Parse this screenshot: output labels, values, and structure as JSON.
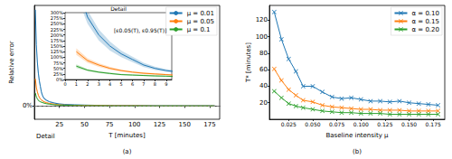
{
  "chart_data": [
    {
      "type": "line",
      "caption": "(a)",
      "x_label": "T [minutes]",
      "y_label": "Relative error",
      "annotations": [
        "Detail"
      ],
      "x": [
        1,
        2,
        3,
        4,
        5,
        6,
        7,
        8,
        9,
        10,
        12,
        15,
        20,
        25,
        30,
        40,
        50,
        60,
        80,
        100,
        120,
        140,
        160,
        180
      ],
      "series": [
        {
          "name": "μ = 0.01",
          "color": "#1f77b4",
          "values": [
            440,
            280,
            200,
            150,
            115,
            90,
            65,
            50,
            40,
            34,
            27,
            20,
            14,
            10,
            8,
            6,
            5,
            4,
            3,
            3,
            2,
            2,
            2,
            2
          ],
          "lower": [
            380,
            250,
            175,
            130,
            100,
            78,
            56,
            43,
            34,
            29,
            23,
            17,
            11,
            8,
            6,
            5,
            4,
            3,
            2,
            2,
            1,
            1,
            1,
            1
          ],
          "upper": [
            500,
            310,
            225,
            170,
            130,
            102,
            75,
            58,
            47,
            40,
            32,
            24,
            17,
            12,
            10,
            8,
            6,
            5,
            4,
            4,
            3,
            3,
            3,
            3
          ]
        },
        {
          "name": "μ = 0.05",
          "color": "#ff7f0e",
          "values": [
            125,
            85,
            65,
            50,
            40,
            33,
            28,
            25,
            22,
            19,
            16,
            12,
            9,
            6,
            5,
            4,
            3,
            3,
            2,
            2,
            1,
            1,
            1,
            1
          ],
          "lower": [
            110,
            75,
            57,
            44,
            35,
            29,
            24,
            21,
            19,
            16,
            13,
            10,
            7,
            5,
            4,
            3,
            2,
            2,
            1,
            1,
            1,
            1,
            1,
            1
          ],
          "upper": [
            140,
            95,
            73,
            57,
            45,
            38,
            32,
            28,
            25,
            22,
            19,
            14,
            11,
            8,
            6,
            5,
            4,
            4,
            3,
            3,
            2,
            2,
            2,
            2
          ]
        },
        {
          "name": "μ = 0.1",
          "color": "#2ca02c",
          "values": [
            60,
            42,
            33,
            27,
            22,
            20,
            18,
            16,
            15,
            13,
            11,
            9,
            6,
            5,
            4,
            3,
            2,
            2,
            1,
            1,
            1,
            1,
            1,
            1
          ],
          "lower": [
            52,
            37,
            29,
            23,
            19,
            17,
            15,
            14,
            13,
            11,
            9,
            7,
            5,
            4,
            3,
            2,
            2,
            1,
            1,
            1,
            0,
            0,
            0,
            0
          ],
          "upper": [
            68,
            47,
            37,
            31,
            25,
            23,
            21,
            19,
            17,
            15,
            13,
            11,
            8,
            6,
            5,
            4,
            3,
            3,
            2,
            2,
            2,
            2,
            2,
            2
          ]
        }
      ],
      "xlim": [
        0,
        185
      ],
      "xticks": [
        25,
        50,
        75,
        100,
        125,
        150,
        175
      ],
      "ylim": [
        -60,
        460
      ],
      "yticks": [
        {
          "value": 0,
          "label": "0%"
        }
      ],
      "grid": true,
      "legend": "upper right",
      "inset": {
        "title": "Detail",
        "annotation": "[ε0.05(T), ε0.95(T)]",
        "xlim": [
          0,
          9.5
        ],
        "xticks": [
          0,
          1,
          2,
          3,
          4,
          5,
          6,
          7,
          8,
          9
        ],
        "ylim": [
          0,
          300
        ],
        "yticks": [
          {
            "value": 0,
            "label": "0%"
          },
          {
            "value": 25,
            "label": "25%"
          },
          {
            "value": 50,
            "label": "50%"
          },
          {
            "value": 75,
            "label": "75%"
          },
          {
            "value": 100,
            "label": "100%"
          },
          {
            "value": 125,
            "label": "125%"
          },
          {
            "value": 150,
            "label": "150%"
          },
          {
            "value": 175,
            "label": "175%"
          },
          {
            "value": 200,
            "label": "200%"
          },
          {
            "value": 225,
            "label": "225%"
          },
          {
            "value": 250,
            "label": "250%"
          },
          {
            "value": 275,
            "label": "275%"
          },
          {
            "value": 300,
            "label": "300%"
          }
        ],
        "grid": false
      }
    },
    {
      "type": "line",
      "caption": "(b)",
      "x_label": "Baseline intensity μ",
      "y_label": "T* [minutes]",
      "marker": "x",
      "x": [
        0.01,
        0.0175,
        0.025,
        0.0325,
        0.04,
        0.05,
        0.06,
        0.07,
        0.08,
        0.09,
        0.1,
        0.11,
        0.12,
        0.13,
        0.14,
        0.15,
        0.16,
        0.17,
        0.18
      ],
      "series": [
        {
          "name": "α = 0.10",
          "color": "#1f77b4",
          "values": [
            130,
            97,
            73,
            58,
            40,
            40,
            33,
            27,
            25,
            26,
            24,
            22,
            22,
            21,
            22,
            20,
            19,
            18,
            17
          ]
        },
        {
          "name": "α = 0.15",
          "color": "#ff7f0e",
          "values": [
            61,
            47,
            36,
            29,
            23,
            21,
            17,
            15,
            14,
            13,
            12,
            12,
            11,
            11,
            11,
            10,
            10,
            10,
            10
          ]
        },
        {
          "name": "α = 0.20",
          "color": "#2ca02c",
          "values": [
            34,
            26,
            19,
            16,
            14,
            12,
            10,
            9,
            8,
            8,
            7,
            7,
            7,
            6,
            6,
            6,
            6,
            6,
            6
          ]
        }
      ],
      "xlim": [
        0.005,
        0.187
      ],
      "xticks": [
        0.025,
        {
          "value": 0.05,
          "label": "0.050"
        },
        0.075,
        {
          "value": 0.1,
          "label": "0.100"
        },
        0.125,
        {
          "value": 0.15,
          "label": "0.150"
        },
        0.175
      ],
      "ylim": [
        0,
        138
      ],
      "yticks": [
        20,
        40,
        60,
        80,
        100,
        120
      ],
      "grid": false,
      "legend": "upper right"
    }
  ]
}
